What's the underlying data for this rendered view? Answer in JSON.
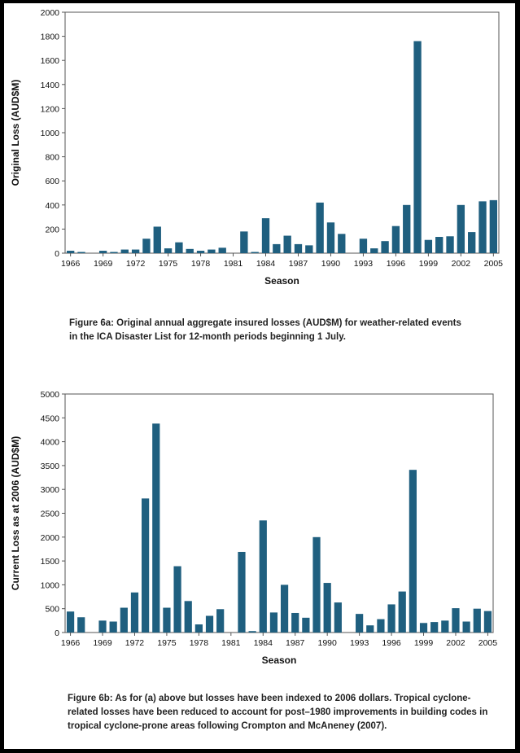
{
  "figures": [
    {
      "caption": "Figure 6a: Original annual aggregate insured losses (AUD$M) for weather-related events\nin the ICA Disaster List for 12-month periods beginning 1 July."
    },
    {
      "caption": "Figure 6b: As for (a) above but losses have been indexed to 2006 dollars. Tropical cyclone-\nrelated losses have been reduced to account for post–1980 improvements in building codes in\ntropical cyclone-prone areas following Crompton and McAneney (2007)."
    }
  ],
  "chart_data": [
    {
      "type": "bar",
      "xlabel": "Season",
      "ylabel": "Original Loss (AUD$M)",
      "ylim": [
        0,
        2000
      ],
      "yticks": [
        0,
        200,
        400,
        600,
        800,
        1000,
        1200,
        1400,
        1600,
        1800,
        2000
      ],
      "grid": false,
      "color": "#1f5f7f",
      "categories": [
        1966,
        1967,
        1968,
        1969,
        1970,
        1971,
        1972,
        1973,
        1974,
        1975,
        1976,
        1977,
        1978,
        1979,
        1980,
        1981,
        1982,
        1983,
        1984,
        1985,
        1986,
        1987,
        1988,
        1989,
        1990,
        1991,
        1992,
        1993,
        1994,
        1995,
        1996,
        1997,
        1998,
        1999,
        2000,
        2001,
        2002,
        2003,
        2004,
        2005
      ],
      "tick_labels": [
        {
          "x": 1966,
          "label": "1966"
        },
        {
          "x": 1969,
          "label": "1969"
        },
        {
          "x": 1972,
          "label": "1972"
        },
        {
          "x": 1975,
          "label": "1975"
        },
        {
          "x": 1978,
          "label": "1978"
        },
        {
          "x": 1981,
          "label": "1981"
        },
        {
          "x": 1984,
          "label": "1984"
        },
        {
          "x": 1987,
          "label": "1987"
        },
        {
          "x": 1990,
          "label": "1990"
        },
        {
          "x": 1993,
          "label": "1993"
        },
        {
          "x": 1996,
          "label": "1996"
        },
        {
          "x": 1999,
          "label": "1999"
        },
        {
          "x": 2002,
          "label": "2002"
        },
        {
          "x": 2005,
          "label": "2005"
        }
      ],
      "values": [
        20,
        10,
        0,
        20,
        10,
        30,
        30,
        120,
        220,
        40,
        90,
        35,
        20,
        30,
        45,
        0,
        180,
        10,
        290,
        75,
        145,
        75,
        65,
        420,
        255,
        160,
        0,
        120,
        40,
        100,
        225,
        400,
        1760,
        110,
        135,
        140,
        400,
        175,
        430,
        440
      ]
    },
    {
      "type": "bar",
      "xlabel": "Season",
      "ylabel": "Current Loss as at 2006 (AUD$M)",
      "ylim": [
        0,
        5000
      ],
      "yticks": [
        0,
        500,
        1000,
        1500,
        2000,
        2500,
        3000,
        3500,
        4000,
        4500,
        5000
      ],
      "grid": false,
      "color": "#1f5f7f",
      "categories": [
        1966,
        1967,
        1968,
        1969,
        1970,
        1971,
        1972,
        1973,
        1974,
        1975,
        1976,
        1977,
        1978,
        1979,
        1980,
        1981,
        1982,
        1983,
        1984,
        1985,
        1986,
        1987,
        1988,
        1989,
        1990,
        1991,
        1992,
        1993,
        1994,
        1995,
        1996,
        1997,
        1998,
        1999,
        2000,
        2001,
        2002,
        2003,
        2004,
        2005
      ],
      "tick_labels": [
        {
          "x": 1966,
          "label": "1966"
        },
        {
          "x": 1969,
          "label": "1969"
        },
        {
          "x": 1972,
          "label": "1972"
        },
        {
          "x": 1975,
          "label": "1975"
        },
        {
          "x": 1978,
          "label": "1978"
        },
        {
          "x": 1981,
          "label": "1981"
        },
        {
          "x": 1984,
          "label": "1984"
        },
        {
          "x": 1987,
          "label": "1987"
        },
        {
          "x": 1990,
          "label": "1990"
        },
        {
          "x": 1993,
          "label": "1993"
        },
        {
          "x": 1996,
          "label": "1996"
        },
        {
          "x": 1999,
          "label": "1999"
        },
        {
          "x": 2002,
          "label": "2002"
        },
        {
          "x": 2005,
          "label": "2005"
        }
      ],
      "values": [
        440,
        320,
        0,
        250,
        230,
        520,
        840,
        2810,
        4380,
        520,
        1390,
        660,
        170,
        350,
        490,
        0,
        1690,
        30,
        2350,
        420,
        1000,
        410,
        310,
        2000,
        1040,
        630,
        0,
        390,
        150,
        280,
        590,
        860,
        3410,
        200,
        220,
        250,
        510,
        230,
        500,
        450
      ]
    }
  ]
}
